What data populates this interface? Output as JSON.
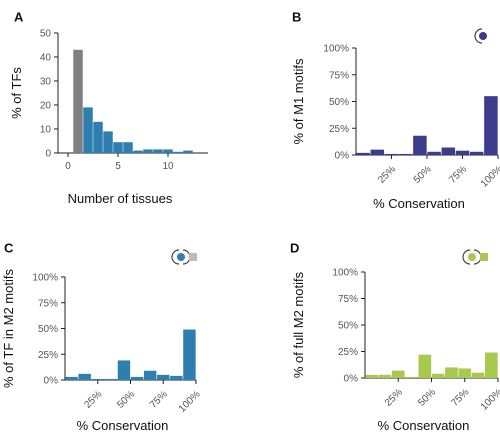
{
  "chart_data": [
    {
      "panel": "A",
      "type": "bar",
      "xlabel": "Number of tissues",
      "ylabel": "% of TFs",
      "x_ticks": [
        "0",
        "5",
        "10"
      ],
      "y_ticks": [
        "0",
        "10",
        "20",
        "30",
        "40",
        "50"
      ],
      "xlim": [
        -1,
        14
      ],
      "ylim": [
        0,
        50
      ],
      "grid": false,
      "bars": [
        {
          "x": 1,
          "value": 43,
          "color": "#808080"
        },
        {
          "x": 2,
          "value": 19,
          "color": "#2e7fb0"
        },
        {
          "x": 3,
          "value": 13,
          "color": "#2e7fb0"
        },
        {
          "x": 4,
          "value": 9,
          "color": "#2e7fb0"
        },
        {
          "x": 5,
          "value": 4.5,
          "color": "#2e7fb0"
        },
        {
          "x": 6,
          "value": 4.5,
          "color": "#2e7fb0"
        },
        {
          "x": 7,
          "value": 1,
          "color": "#2e7fb0"
        },
        {
          "x": 8,
          "value": 1.5,
          "color": "#2e7fb0"
        },
        {
          "x": 9,
          "value": 1.5,
          "color": "#2e7fb0"
        },
        {
          "x": 10,
          "value": 1.5,
          "color": "#2e7fb0"
        },
        {
          "x": 11,
          "value": 0.5,
          "color": "#2e7fb0"
        },
        {
          "x": 12,
          "value": 1,
          "color": "#2e7fb0"
        }
      ]
    },
    {
      "panel": "B",
      "type": "bar",
      "xlabel": "% Conservation",
      "ylabel": "% of M1 motifs",
      "x_ticks": [
        "25%",
        "50%",
        "75%",
        "100%"
      ],
      "x_tick_positions": [
        25,
        50,
        75,
        100
      ],
      "y_ticks": [
        "0%",
        "25%",
        "50%",
        "75%",
        "100%"
      ],
      "ylim": [
        0,
        100
      ],
      "grid": false,
      "color": "#3c3c8c",
      "motif_icon": "m1-motif-icon",
      "bars": [
        {
          "x": 10,
          "value": 2
        },
        {
          "x": 20,
          "value": 5
        },
        {
          "x": 30,
          "value": 1
        },
        {
          "x": 40,
          "value": 1
        },
        {
          "x": 50,
          "value": 18
        },
        {
          "x": 60,
          "value": 3
        },
        {
          "x": 70,
          "value": 7
        },
        {
          "x": 80,
          "value": 4
        },
        {
          "x": 90,
          "value": 3
        },
        {
          "x": 100,
          "value": 55
        }
      ]
    },
    {
      "panel": "C",
      "type": "bar",
      "xlabel": "% Conservation",
      "ylabel": "% of TF in M2 motifs",
      "x_ticks": [
        "25%",
        "50%",
        "75%",
        "100%"
      ],
      "x_tick_positions": [
        25,
        50,
        75,
        100
      ],
      "y_ticks": [
        "0%",
        "25%",
        "50%",
        "75%",
        "100%"
      ],
      "ylim": [
        0,
        100
      ],
      "grid": false,
      "color": "#2e7fb0",
      "motif_icon": "m2-tf-motif-icon",
      "bars": [
        {
          "x": 10,
          "value": 3
        },
        {
          "x": 20,
          "value": 6
        },
        {
          "x": 30,
          "value": 1
        },
        {
          "x": 40,
          "value": 1
        },
        {
          "x": 50,
          "value": 19
        },
        {
          "x": 60,
          "value": 3
        },
        {
          "x": 70,
          "value": 9
        },
        {
          "x": 80,
          "value": 5
        },
        {
          "x": 90,
          "value": 4
        },
        {
          "x": 100,
          "value": 49
        }
      ]
    },
    {
      "panel": "D",
      "type": "bar",
      "xlabel": "% Conservation",
      "ylabel": "% of full M2 motifs",
      "x_ticks": [
        "25%",
        "50%",
        "75%",
        "100%"
      ],
      "x_tick_positions": [
        25,
        50,
        75,
        100
      ],
      "y_ticks": [
        "0%",
        "25%",
        "50%",
        "75%",
        "100%"
      ],
      "ylim": [
        0,
        100
      ],
      "grid": false,
      "color": "#a8c850",
      "motif_icon": "m2-full-motif-icon",
      "bars": [
        {
          "x": 10,
          "value": 3
        },
        {
          "x": 20,
          "value": 3
        },
        {
          "x": 30,
          "value": 7
        },
        {
          "x": 40,
          "value": 1
        },
        {
          "x": 50,
          "value": 22
        },
        {
          "x": 60,
          "value": 4
        },
        {
          "x": 70,
          "value": 10
        },
        {
          "x": 80,
          "value": 9
        },
        {
          "x": 90,
          "value": 5
        },
        {
          "x": 100,
          "value": 24
        }
      ]
    }
  ],
  "icon_colors": {
    "m1": "#3c3c8c",
    "m2_tf": "#2e7fb0",
    "m2_gray": "#bbbbbb",
    "m2_full": "#a8c850"
  }
}
